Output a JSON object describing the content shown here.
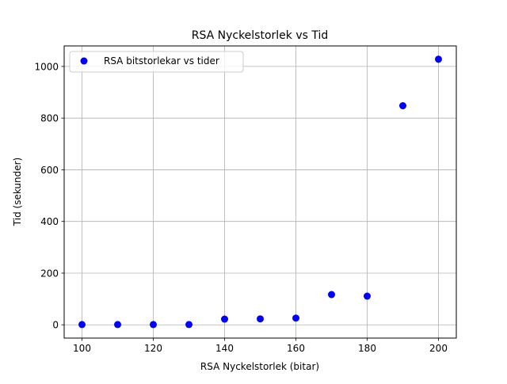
{
  "chart_data": {
    "type": "scatter",
    "title": "RSA Nyckelstorlek vs Tid",
    "xlabel": "RSA Nyckelstorlek (bitar)",
    "ylabel": "Tid (sekunder)",
    "xlim": [
      95,
      205
    ],
    "ylim": [
      -51.4,
      1079.4
    ],
    "xticks": [
      100,
      120,
      140,
      160,
      180,
      200
    ],
    "yticks": [
      0,
      200,
      400,
      600,
      800,
      1000
    ],
    "grid": true,
    "legend_position": "upper left",
    "series": [
      {
        "name": "RSA bitstorlekar vs tider",
        "color": "#0000ff",
        "x": [
          100,
          110,
          120,
          130,
          140,
          150,
          160,
          170,
          180,
          190,
          200
        ],
        "y": [
          1,
          1,
          1,
          1,
          22,
          23,
          26,
          117,
          111,
          848,
          1028
        ]
      }
    ]
  }
}
